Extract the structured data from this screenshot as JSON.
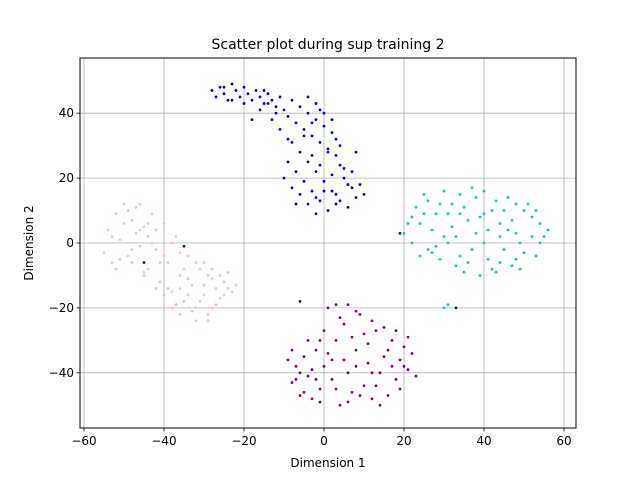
{
  "chart_data": {
    "type": "scatter",
    "title": "Scatter plot during sup training 2",
    "xlabel": "Dimension 1",
    "ylabel": "Dimension 2",
    "xlim": [
      -61,
      63
    ],
    "ylim": [
      -57,
      57
    ],
    "xticks": [
      -60,
      -40,
      -20,
      0,
      20,
      40,
      60
    ],
    "yticks": [
      -40,
      -20,
      0,
      20,
      40
    ],
    "xtick_labels": [
      "−60",
      "−40",
      "−20",
      "0",
      "20",
      "40",
      "60"
    ],
    "ytick_labels": [
      "−40",
      "−20",
      "0",
      "20",
      "40"
    ],
    "grid": true,
    "legend": "none",
    "series": [
      {
        "color": "#0000e6",
        "points": [
          [
            -28,
            47
          ],
          [
            -27,
            45
          ],
          [
            -26,
            48
          ],
          [
            -25,
            46
          ],
          [
            -24,
            44
          ],
          [
            -23,
            49
          ],
          [
            -22,
            47
          ],
          [
            -21,
            45
          ],
          [
            -20,
            48
          ],
          [
            -19,
            46
          ],
          [
            -18,
            44
          ],
          [
            -17,
            47
          ],
          [
            -16,
            45
          ],
          [
            -15,
            43
          ],
          [
            -14,
            46
          ],
          [
            -13,
            44
          ],
          [
            -12,
            42
          ],
          [
            -11,
            45
          ],
          [
            -10,
            41
          ],
          [
            -9,
            39
          ],
          [
            -8,
            44
          ],
          [
            -7,
            37
          ],
          [
            -6,
            42
          ],
          [
            -5,
            35
          ],
          [
            -4,
            40
          ],
          [
            -3,
            33
          ],
          [
            -2,
            38
          ],
          [
            -1,
            31
          ],
          [
            0,
            36
          ],
          [
            1,
            29
          ],
          [
            2,
            34
          ],
          [
            3,
            27
          ],
          [
            -8,
            31
          ],
          [
            -6,
            28
          ],
          [
            -4,
            25
          ],
          [
            -2,
            22
          ],
          [
            0,
            19
          ],
          [
            2,
            16
          ],
          [
            4,
            13
          ],
          [
            6,
            18
          ],
          [
            -7,
            22
          ],
          [
            -5,
            19
          ],
          [
            -3,
            16
          ],
          [
            -1,
            13
          ],
          [
            1,
            10
          ],
          [
            3,
            15
          ],
          [
            5,
            20
          ],
          [
            7,
            17
          ],
          [
            -6,
            15
          ],
          [
            -4,
            12
          ],
          [
            -2,
            9
          ],
          [
            0,
            16
          ],
          [
            2,
            21
          ],
          [
            4,
            24
          ],
          [
            6,
            11
          ],
          [
            -3,
            27
          ],
          [
            -1,
            24
          ],
          [
            1,
            28
          ],
          [
            3,
            32
          ],
          [
            5,
            23
          ],
          [
            -9,
            25
          ],
          [
            -10,
            20
          ],
          [
            -8,
            17
          ],
          [
            -5,
            33
          ],
          [
            -3,
            37
          ],
          [
            -1,
            41
          ],
          [
            -12,
            40
          ],
          [
            -14,
            43
          ],
          [
            -16,
            41
          ],
          [
            -18,
            38
          ],
          [
            -11,
            35
          ],
          [
            -9,
            32
          ],
          [
            2,
            38
          ],
          [
            4,
            30
          ],
          [
            8,
            28
          ],
          [
            9,
            18
          ],
          [
            10,
            15
          ],
          [
            -4,
            45
          ],
          [
            -2,
            43
          ],
          [
            0,
            40
          ],
          [
            -15,
            47
          ],
          [
            -20,
            43
          ],
          [
            -25,
            48
          ],
          [
            -23,
            44
          ],
          [
            -13,
            38
          ],
          [
            7,
            22
          ],
          [
            8,
            14
          ],
          [
            -7,
            12
          ],
          [
            -2,
            14
          ],
          [
            3,
            12
          ]
        ]
      },
      {
        "color": "#17bfbf",
        "points": [
          [
            20,
            3
          ],
          [
            22,
            0
          ],
          [
            24,
            6
          ],
          [
            26,
            -2
          ],
          [
            28,
            9
          ],
          [
            30,
            2
          ],
          [
            32,
            12
          ],
          [
            34,
            -4
          ],
          [
            36,
            7
          ],
          [
            38,
            14
          ],
          [
            40,
            0
          ],
          [
            42,
            10
          ],
          [
            44,
            -6
          ],
          [
            46,
            4
          ],
          [
            48,
            12
          ],
          [
            50,
            -3
          ],
          [
            52,
            8
          ],
          [
            54,
            0
          ],
          [
            56,
            4
          ],
          [
            22,
            8
          ],
          [
            24,
            -4
          ],
          [
            26,
            13
          ],
          [
            28,
            -1
          ],
          [
            30,
            16
          ],
          [
            32,
            5
          ],
          [
            34,
            15
          ],
          [
            36,
            -6
          ],
          [
            38,
            3
          ],
          [
            40,
            16
          ],
          [
            42,
            -8
          ],
          [
            44,
            6
          ],
          [
            46,
            14
          ],
          [
            48,
            -5
          ],
          [
            50,
            10
          ],
          [
            52,
            2
          ],
          [
            54,
            6
          ],
          [
            23,
            11
          ],
          [
            25,
            15
          ],
          [
            27,
            4
          ],
          [
            29,
            -5
          ],
          [
            31,
            9
          ],
          [
            33,
            -7
          ],
          [
            35,
            11
          ],
          [
            37,
            -2
          ],
          [
            39,
            8
          ],
          [
            41,
            -5
          ],
          [
            43,
            13
          ],
          [
            45,
            -2
          ],
          [
            47,
            7
          ],
          [
            49,
            0
          ],
          [
            51,
            12
          ],
          [
            53,
            -4
          ],
          [
            21,
            6
          ],
          [
            25,
            9
          ],
          [
            29,
            12
          ],
          [
            33,
            2
          ],
          [
            37,
            17
          ],
          [
            41,
            4
          ],
          [
            45,
            10
          ],
          [
            49,
            -8
          ],
          [
            53,
            10
          ],
          [
            27,
            -3
          ],
          [
            31,
            0
          ],
          [
            35,
            -9
          ],
          [
            39,
            -10
          ],
          [
            43,
            -9
          ],
          [
            47,
            -7
          ],
          [
            30,
            -20
          ],
          [
            31,
            -19
          ],
          [
            55,
            2
          ],
          [
            34,
            9
          ],
          [
            40,
            9
          ],
          [
            44,
            2
          ],
          [
            48,
            3
          ]
        ]
      },
      {
        "color": "#f7bfcc",
        "points": [
          [
            -55,
            -3
          ],
          [
            -54,
            4
          ],
          [
            -53,
            -6
          ],
          [
            -52,
            9
          ],
          [
            -51,
            1
          ],
          [
            -50,
            12
          ],
          [
            -49,
            -4
          ],
          [
            -48,
            7
          ],
          [
            -47,
            11
          ],
          [
            -46,
            -1
          ],
          [
            -45,
            5
          ],
          [
            -44,
            -8
          ],
          [
            -43,
            9
          ],
          [
            -42,
            -2
          ],
          [
            -41,
            -12
          ],
          [
            -40,
            6
          ],
          [
            -39,
            -6
          ],
          [
            -38,
            -15
          ],
          [
            -37,
            2
          ],
          [
            -36,
            -10
          ],
          [
            -35,
            -18
          ],
          [
            -34,
            -4
          ],
          [
            -33,
            -13
          ],
          [
            -32,
            -20
          ],
          [
            -31,
            -8
          ],
          [
            -30,
            -16
          ],
          [
            -29,
            -22
          ],
          [
            -28,
            -11
          ],
          [
            -27,
            -14
          ],
          [
            -26,
            -17
          ],
          [
            -25,
            -12
          ],
          [
            -24,
            -9
          ],
          [
            -23,
            -15
          ],
          [
            -22,
            -13
          ],
          [
            -53,
            2
          ],
          [
            -51,
            -5
          ],
          [
            -49,
            10
          ],
          [
            -47,
            3
          ],
          [
            -45,
            -9
          ],
          [
            -43,
            0
          ],
          [
            -41,
            -6
          ],
          [
            -39,
            -14
          ],
          [
            -37,
            -19
          ],
          [
            -35,
            -8
          ],
          [
            -33,
            -21
          ],
          [
            -31,
            -18
          ],
          [
            -29,
            -10
          ],
          [
            -27,
            -19
          ],
          [
            -25,
            -16
          ],
          [
            -50,
            6
          ],
          [
            -48,
            -2
          ],
          [
            -46,
            12
          ],
          [
            -44,
            2
          ],
          [
            -42,
            -14
          ],
          [
            -40,
            -4
          ],
          [
            -38,
            -20
          ],
          [
            -36,
            -3
          ],
          [
            -34,
            -11
          ],
          [
            -32,
            -6
          ],
          [
            -30,
            -13
          ],
          [
            -28,
            -20
          ],
          [
            -26,
            -10
          ],
          [
            -24,
            -14
          ],
          [
            -52,
            -8
          ],
          [
            -48,
            -6
          ],
          [
            -44,
            6
          ],
          [
            -40,
            -16
          ],
          [
            -36,
            -22
          ],
          [
            -32,
            -24
          ],
          [
            -29,
            -24
          ],
          [
            -45,
            -10
          ],
          [
            -38,
            0
          ],
          [
            -34,
            -16
          ],
          [
            -30,
            -6
          ],
          [
            -46,
            4
          ],
          [
            -42,
            4
          ],
          [
            -36,
            -14
          ],
          [
            -28,
            -8
          ]
        ]
      },
      {
        "color": "#800080",
        "points": [
          [
            -9,
            -36
          ],
          [
            -8,
            -43
          ],
          [
            -7,
            -38
          ],
          [
            -6,
            -47
          ],
          [
            -5,
            -35
          ],
          [
            -4,
            -41
          ],
          [
            -3,
            -48
          ],
          [
            -2,
            -33
          ],
          [
            -1,
            -45
          ],
          [
            0,
            -38
          ],
          [
            1,
            -20
          ],
          [
            2,
            -42
          ],
          [
            3,
            -30
          ],
          [
            4,
            -50
          ],
          [
            5,
            -25
          ],
          [
            6,
            -40
          ],
          [
            7,
            -46
          ],
          [
            8,
            -33
          ],
          [
            9,
            -22
          ],
          [
            10,
            -44
          ],
          [
            11,
            -37
          ],
          [
            12,
            -48
          ],
          [
            13,
            -27
          ],
          [
            14,
            -40
          ],
          [
            15,
            -35
          ],
          [
            16,
            -47
          ],
          [
            17,
            -30
          ],
          [
            18,
            -42
          ],
          [
            19,
            -36
          ],
          [
            20,
            -32
          ],
          [
            21,
            -39
          ],
          [
            22,
            -34
          ],
          [
            23,
            -41
          ],
          [
            -7,
            -42
          ],
          [
            -5,
            -46
          ],
          [
            -3,
            -39
          ],
          [
            -1,
            -49
          ],
          [
            1,
            -34
          ],
          [
            3,
            -45
          ],
          [
            5,
            -36
          ],
          [
            7,
            -29
          ],
          [
            9,
            -47
          ],
          [
            11,
            -31
          ],
          [
            13,
            -44
          ],
          [
            15,
            -26
          ],
          [
            17,
            -38
          ],
          [
            19,
            -45
          ],
          [
            21,
            -29
          ],
          [
            -8,
            -33
          ],
          [
            -4,
            -30
          ],
          [
            0,
            -27
          ],
          [
            4,
            -23
          ],
          [
            8,
            -21
          ],
          [
            12,
            -24
          ],
          [
            16,
            -33
          ],
          [
            20,
            -38
          ],
          [
            2,
            -36
          ],
          [
            6,
            -49
          ],
          [
            10,
            -28
          ],
          [
            14,
            -50
          ],
          [
            18,
            -27
          ],
          [
            -2,
            -42
          ],
          [
            -6,
            -40
          ],
          [
            3,
            -19
          ],
          [
            6,
            -19
          ],
          [
            12,
            -40
          ],
          [
            8,
            -38
          ],
          [
            -1,
            -30
          ]
        ]
      },
      {
        "color": "#1a1a4d",
        "points": [
          [
            -45,
            -6
          ],
          [
            -35,
            -1
          ],
          [
            19,
            3
          ],
          [
            33,
            -20
          ],
          [
            -6,
            -18
          ]
        ]
      }
    ]
  }
}
